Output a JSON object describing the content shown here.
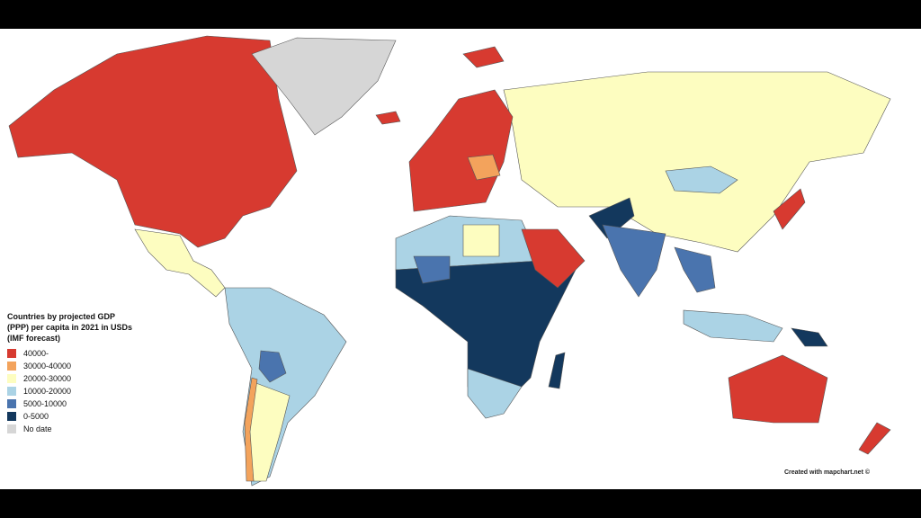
{
  "legend": {
    "title": "Countries by projected GDP (PPP) per capita in 2021 in USDs (IMF forecast)",
    "items": [
      {
        "label": "40000-",
        "color": "#d73a30"
      },
      {
        "label": "30000-40000",
        "color": "#f3a35c"
      },
      {
        "label": "20000-30000",
        "color": "#fdfdc0"
      },
      {
        "label": "10000-20000",
        "color": "#abd3e5"
      },
      {
        "label": "5000-10000",
        "color": "#4a74ae"
      },
      {
        "label": "0-5000",
        "color": "#13385d"
      },
      {
        "label": "No date",
        "color": "#d6d6d6"
      }
    ]
  },
  "credit": "Created with mapchart.net ©"
}
